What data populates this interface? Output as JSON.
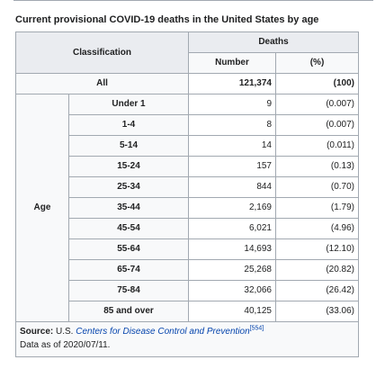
{
  "caption": "Current provisional COVID-19 deaths in the United States by age",
  "headers": {
    "classification": "Classification",
    "deaths": "Deaths",
    "number": "Number",
    "percent": "(%)"
  },
  "all_row": {
    "label": "All",
    "number": "121,374",
    "percent": "(100)"
  },
  "age_label": "Age",
  "age_rows": [
    {
      "label": "Under 1",
      "number": "9",
      "percent": "(0.007)"
    },
    {
      "label": "1-4",
      "number": "8",
      "percent": "(0.007)"
    },
    {
      "label": "5-14",
      "number": "14",
      "percent": "(0.011)"
    },
    {
      "label": "15-24",
      "number": "157",
      "percent": "(0.13)"
    },
    {
      "label": "25-34",
      "number": "844",
      "percent": "(0.70)"
    },
    {
      "label": "35-44",
      "number": "2,169",
      "percent": "(1.79)"
    },
    {
      "label": "45-54",
      "number": "6,021",
      "percent": "(4.96)"
    },
    {
      "label": "55-64",
      "number": "14,693",
      "percent": "(12.10)"
    },
    {
      "label": "65-74",
      "number": "25,268",
      "percent": "(20.82)"
    },
    {
      "label": "75-84",
      "number": "32,066",
      "percent": "(26.42)"
    },
    {
      "label": "85 and over",
      "number": "40,125",
      "percent": "(33.06)"
    }
  ],
  "source": {
    "label": "Source:",
    "prefix": "U.S.",
    "organization": "Centers for Disease Control and Prevention",
    "ref": "[554]",
    "data_as_of": "Data as of 2020/07/11."
  }
}
